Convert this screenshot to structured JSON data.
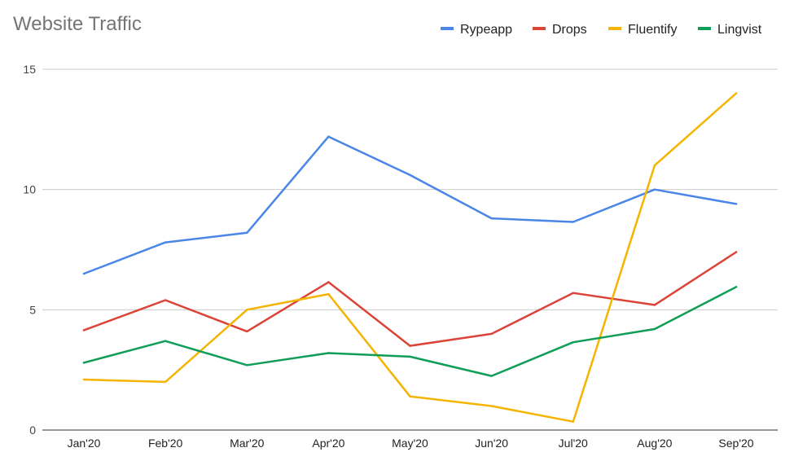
{
  "chart_data": {
    "type": "line",
    "title": "Website Traffic",
    "xlabel": "",
    "ylabel": "",
    "categories": [
      "Jan'20",
      "Feb'20",
      "Mar'20",
      "Apr'20",
      "May'20",
      "Jun'20",
      "Jul'20",
      "Aug'20",
      "Sep'20"
    ],
    "ylim": [
      0,
      15
    ],
    "yticks": [
      0,
      5,
      10,
      15
    ],
    "grid": true,
    "legend_position": "top-right",
    "series": [
      {
        "name": "Rypeapp",
        "color": "#4a86e8",
        "values": [
          6.5,
          7.8,
          8.2,
          12.2,
          10.6,
          8.8,
          8.65,
          10.0,
          9.4
        ]
      },
      {
        "name": "Drops",
        "color": "#db4437",
        "values": [
          4.15,
          5.4,
          4.1,
          6.15,
          3.5,
          4.0,
          5.7,
          5.2,
          7.4
        ]
      },
      {
        "name": "Fluentify",
        "color": "#f4b400",
        "values": [
          2.1,
          2.0,
          5.0,
          5.65,
          1.4,
          1.0,
          0.35,
          11.0,
          14.0
        ]
      },
      {
        "name": "Lingvist",
        "color": "#0f9d58",
        "values": [
          2.8,
          3.7,
          2.7,
          3.2,
          3.05,
          2.25,
          3.65,
          4.2,
          5.95
        ]
      }
    ]
  }
}
